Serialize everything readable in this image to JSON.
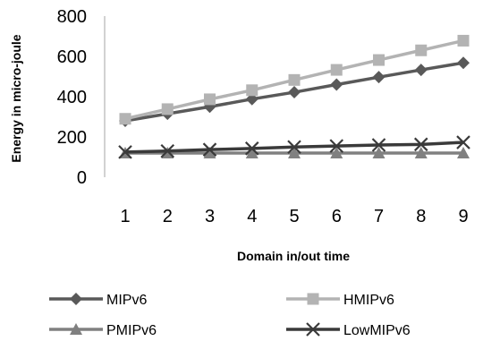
{
  "chart_data": {
    "type": "line",
    "title": "",
    "xlabel": "Domain in/out time",
    "ylabel": "Energy in micro-joule",
    "categories": [
      "1",
      "2",
      "3",
      "4",
      "5",
      "6",
      "7",
      "8",
      "9"
    ],
    "ylim": [
      0,
      800
    ],
    "yticks": [
      "0",
      "200",
      "400",
      "600",
      "800"
    ],
    "grid": false,
    "legend_position": "bottom",
    "series": [
      {
        "name": "MIPv6",
        "color": "#595959",
        "marker": "diamond",
        "values": [
          280,
          315,
          350,
          388,
          422,
          460,
          497,
          533,
          568
        ]
      },
      {
        "name": "HMIPv6",
        "color": "#b3b3b3",
        "marker": "square",
        "values": [
          290,
          338,
          387,
          432,
          483,
          533,
          582,
          630,
          678
        ]
      },
      {
        "name": "PMIPv6",
        "color": "#808080",
        "marker": "triangle",
        "values": [
          120,
          120,
          120,
          120,
          120,
          120,
          120,
          120,
          120
        ]
      },
      {
        "name": "LowMIPv6",
        "color": "#3a3a3a",
        "marker": "x",
        "values": [
          125,
          130,
          137,
          143,
          150,
          155,
          160,
          163,
          173
        ]
      }
    ]
  }
}
